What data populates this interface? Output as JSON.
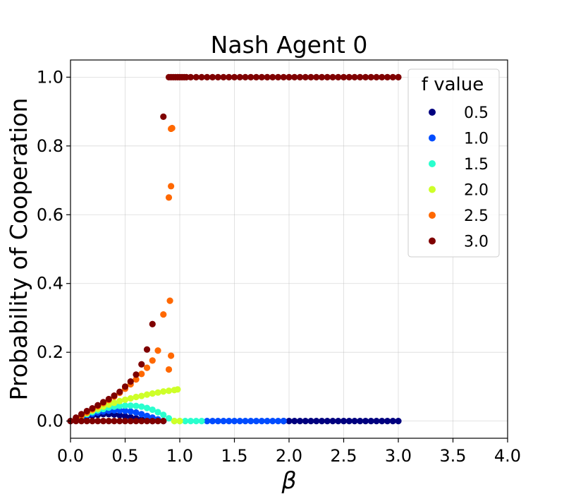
{
  "chart_data": {
    "type": "scatter",
    "title": "Nash Agent 0",
    "xlabel": "β",
    "ylabel": "Probability of Cooperation",
    "xlim": [
      0,
      4
    ],
    "ylim": [
      -0.05,
      1.05
    ],
    "xticks": [
      "0.0",
      "0.5",
      "1.0",
      "1.5",
      "2.0",
      "2.5",
      "3.0",
      "3.5",
      "4.0"
    ],
    "yticks": [
      "0.0",
      "0.2",
      "0.4",
      "0.6",
      "0.8",
      "1.0"
    ],
    "grid": true,
    "legend": {
      "title": "f value",
      "placement": "top-right"
    },
    "series": [
      {
        "name": "0.5",
        "color": "#00007f",
        "points": [
          [
            0.0,
            0.0
          ],
          [
            0.05,
            0.005
          ],
          [
            0.1,
            0.01
          ],
          [
            0.15,
            0.013
          ],
          [
            0.2,
            0.016
          ],
          [
            0.25,
            0.018
          ],
          [
            0.3,
            0.02
          ],
          [
            0.35,
            0.02
          ],
          [
            0.4,
            0.019
          ],
          [
            0.45,
            0.017
          ],
          [
            0.5,
            0.014
          ],
          [
            0.55,
            0.011
          ],
          [
            0.6,
            0.008
          ],
          [
            0.65,
            0.005
          ],
          [
            0.7,
            0.002
          ],
          [
            0.75,
            0.0
          ],
          [
            1.95,
            0.0
          ],
          [
            2.0,
            0.0
          ],
          [
            2.05,
            0.0
          ],
          [
            2.1,
            0.0
          ],
          [
            2.15,
            0.0
          ],
          [
            2.2,
            0.0
          ],
          [
            2.25,
            0.0
          ],
          [
            2.3,
            0.0
          ],
          [
            2.35,
            0.0
          ],
          [
            2.4,
            0.0
          ],
          [
            2.45,
            0.0
          ],
          [
            2.5,
            0.0
          ],
          [
            2.55,
            0.0
          ],
          [
            2.6,
            0.0
          ],
          [
            2.65,
            0.0
          ],
          [
            2.7,
            0.0
          ],
          [
            2.75,
            0.0
          ],
          [
            2.8,
            0.0
          ],
          [
            2.85,
            0.0
          ],
          [
            2.9,
            0.0
          ],
          [
            2.95,
            0.0
          ],
          [
            3.0,
            0.0
          ]
        ]
      },
      {
        "name": "1.0",
        "color": "#004cff",
        "points": [
          [
            0.05,
            0.006
          ],
          [
            0.1,
            0.012
          ],
          [
            0.15,
            0.017
          ],
          [
            0.2,
            0.021
          ],
          [
            0.25,
            0.025
          ],
          [
            0.3,
            0.028
          ],
          [
            0.35,
            0.03
          ],
          [
            0.4,
            0.031
          ],
          [
            0.45,
            0.031
          ],
          [
            0.5,
            0.03
          ],
          [
            0.55,
            0.028
          ],
          [
            0.6,
            0.025
          ],
          [
            0.65,
            0.02
          ],
          [
            0.7,
            0.015
          ],
          [
            0.75,
            0.01
          ],
          [
            0.8,
            0.005
          ],
          [
            0.85,
            0.0
          ],
          [
            1.25,
            0.0
          ],
          [
            1.3,
            0.0
          ],
          [
            1.35,
            0.0
          ],
          [
            1.4,
            0.0
          ],
          [
            1.45,
            0.0
          ],
          [
            1.5,
            0.0
          ],
          [
            1.55,
            0.0
          ],
          [
            1.6,
            0.0
          ],
          [
            1.65,
            0.0
          ],
          [
            1.7,
            0.0
          ],
          [
            1.75,
            0.0
          ],
          [
            1.8,
            0.0
          ],
          [
            1.85,
            0.0
          ],
          [
            1.9,
            0.0
          ],
          [
            1.95,
            0.0
          ]
        ]
      },
      {
        "name": "1.5",
        "color": "#29ffce",
        "points": [
          [
            0.05,
            0.007
          ],
          [
            0.1,
            0.014
          ],
          [
            0.15,
            0.02
          ],
          [
            0.2,
            0.026
          ],
          [
            0.25,
            0.031
          ],
          [
            0.3,
            0.035
          ],
          [
            0.35,
            0.039
          ],
          [
            0.4,
            0.042
          ],
          [
            0.45,
            0.044
          ],
          [
            0.5,
            0.045
          ],
          [
            0.55,
            0.045
          ],
          [
            0.6,
            0.044
          ],
          [
            0.65,
            0.042
          ],
          [
            0.7,
            0.038
          ],
          [
            0.75,
            0.033
          ],
          [
            0.8,
            0.026
          ],
          [
            0.85,
            0.018
          ],
          [
            0.9,
            0.008
          ],
          [
            0.95,
            0.0
          ],
          [
            1.0,
            0.0
          ],
          [
            1.05,
            0.0
          ],
          [
            1.1,
            0.0
          ],
          [
            1.15,
            0.0
          ],
          [
            1.2,
            0.0
          ]
        ]
      },
      {
        "name": "2.0",
        "color": "#ceff29",
        "points": [
          [
            0.1,
            0.015
          ],
          [
            0.15,
            0.022
          ],
          [
            0.2,
            0.03
          ],
          [
            0.25,
            0.036
          ],
          [
            0.3,
            0.042
          ],
          [
            0.35,
            0.048
          ],
          [
            0.4,
            0.053
          ],
          [
            0.45,
            0.058
          ],
          [
            0.5,
            0.062
          ],
          [
            0.55,
            0.066
          ],
          [
            0.6,
            0.07
          ],
          [
            0.65,
            0.073
          ],
          [
            0.7,
            0.077
          ],
          [
            0.75,
            0.08
          ],
          [
            0.8,
            0.083
          ],
          [
            0.85,
            0.086
          ],
          [
            0.9,
            0.088
          ],
          [
            0.95,
            0.09
          ],
          [
            0.98,
            0.092
          ],
          [
            0.95,
            0.0
          ],
          [
            1.0,
            0.0
          ]
        ]
      },
      {
        "name": "2.5",
        "color": "#ff6800",
        "points": [
          [
            0.05,
            0.008
          ],
          [
            0.1,
            0.016
          ],
          [
            0.15,
            0.025
          ],
          [
            0.2,
            0.034
          ],
          [
            0.25,
            0.043
          ],
          [
            0.3,
            0.052
          ],
          [
            0.35,
            0.061
          ],
          [
            0.4,
            0.071
          ],
          [
            0.45,
            0.082
          ],
          [
            0.5,
            0.094
          ],
          [
            0.55,
            0.107
          ],
          [
            0.6,
            0.121
          ],
          [
            0.65,
            0.137
          ],
          [
            0.7,
            0.155
          ],
          [
            0.75,
            0.176
          ],
          [
            0.8,
            0.205
          ],
          [
            0.85,
            0.31
          ],
          [
            0.9,
            0.15
          ],
          [
            0.9,
            0.65
          ],
          [
            0.91,
            0.35
          ],
          [
            0.92,
            0.19
          ],
          [
            0.92,
            0.683
          ],
          [
            0.92,
            0.85
          ],
          [
            0.93,
            0.852
          ]
        ]
      },
      {
        "name": "3.0",
        "color": "#7f0000",
        "points": [
          [
            0.0,
            0.0
          ],
          [
            0.05,
            0.0
          ],
          [
            0.1,
            0.0
          ],
          [
            0.15,
            0.0
          ],
          [
            0.2,
            0.0
          ],
          [
            0.25,
            0.0
          ],
          [
            0.3,
            0.0
          ],
          [
            0.35,
            0.0
          ],
          [
            0.4,
            0.0
          ],
          [
            0.45,
            0.0
          ],
          [
            0.5,
            0.0
          ],
          [
            0.55,
            0.0
          ],
          [
            0.6,
            0.0
          ],
          [
            0.65,
            0.0
          ],
          [
            0.7,
            0.0
          ],
          [
            0.75,
            0.0
          ],
          [
            0.8,
            0.0
          ],
          [
            0.85,
            0.0
          ],
          [
            0.05,
            0.01
          ],
          [
            0.1,
            0.02
          ],
          [
            0.15,
            0.029
          ],
          [
            0.2,
            0.037
          ],
          [
            0.25,
            0.046
          ],
          [
            0.3,
            0.055
          ],
          [
            0.35,
            0.064
          ],
          [
            0.4,
            0.074
          ],
          [
            0.45,
            0.085
          ],
          [
            0.5,
            0.1
          ],
          [
            0.55,
            0.115
          ],
          [
            0.6,
            0.135
          ],
          [
            0.65,
            0.165
          ],
          [
            0.7,
            0.208
          ],
          [
            0.75,
            0.282
          ],
          [
            0.85,
            0.885
          ],
          [
            0.9,
            1.0
          ],
          [
            0.92,
            1.0
          ],
          [
            0.94,
            1.0
          ],
          [
            0.96,
            1.0
          ],
          [
            0.98,
            1.0
          ],
          [
            1.0,
            1.0
          ],
          [
            1.02,
            1.0
          ],
          [
            1.04,
            1.0
          ],
          [
            1.06,
            1.0
          ],
          [
            1.1,
            1.0
          ],
          [
            1.15,
            1.0
          ],
          [
            1.2,
            1.0
          ],
          [
            1.25,
            1.0
          ],
          [
            1.3,
            1.0
          ],
          [
            1.35,
            1.0
          ],
          [
            1.4,
            1.0
          ],
          [
            1.45,
            1.0
          ],
          [
            1.5,
            1.0
          ],
          [
            1.55,
            1.0
          ],
          [
            1.6,
            1.0
          ],
          [
            1.65,
            1.0
          ],
          [
            1.7,
            1.0
          ],
          [
            1.75,
            1.0
          ],
          [
            1.8,
            1.0
          ],
          [
            1.85,
            1.0
          ],
          [
            1.9,
            1.0
          ],
          [
            1.95,
            1.0
          ],
          [
            2.0,
            1.0
          ],
          [
            2.05,
            1.0
          ],
          [
            2.1,
            1.0
          ],
          [
            2.15,
            1.0
          ],
          [
            2.2,
            1.0
          ],
          [
            2.25,
            1.0
          ],
          [
            2.3,
            1.0
          ],
          [
            2.35,
            1.0
          ],
          [
            2.4,
            1.0
          ],
          [
            2.45,
            1.0
          ],
          [
            2.5,
            1.0
          ],
          [
            2.55,
            1.0
          ],
          [
            2.6,
            1.0
          ],
          [
            2.65,
            1.0
          ],
          [
            2.7,
            1.0
          ],
          [
            2.75,
            1.0
          ],
          [
            2.8,
            1.0
          ],
          [
            2.85,
            1.0
          ],
          [
            2.9,
            1.0
          ],
          [
            2.95,
            1.0
          ],
          [
            3.0,
            1.0
          ]
        ]
      }
    ]
  }
}
